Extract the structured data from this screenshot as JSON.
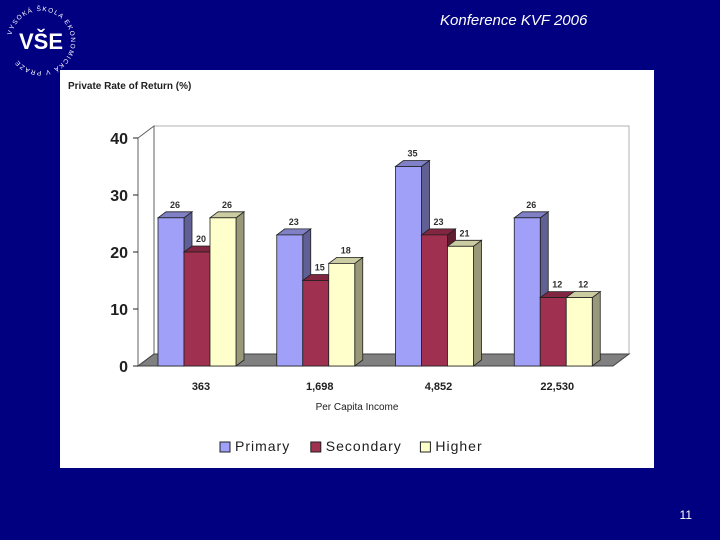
{
  "header": {
    "conference_title": "Konference KVF 2006",
    "logo_text": "VŠE",
    "logo_ring_text": "VYSOKÁ ŠKOLA EKONOMICKÁ V PRAZE"
  },
  "footer": {
    "slide_number": "11"
  },
  "colors": {
    "background": "#000080",
    "panel": "#ffffff",
    "primary": "#a0a0f8",
    "secondary": "#a03050",
    "higher": "#ffffcc",
    "floor": "#808080"
  },
  "chart_data": {
    "type": "bar",
    "title": "Private Rate of Return (%)",
    "xlabel": "Per Capita Income",
    "ylabel": "",
    "categories": [
      "363",
      "1,698",
      "4,852",
      "22,530"
    ],
    "series": [
      {
        "name": "Primary",
        "values": [
          26,
          23,
          35,
          26
        ]
      },
      {
        "name": "Secondary",
        "values": [
          20,
          15,
          23,
          12
        ]
      },
      {
        "name": "Higher",
        "values": [
          26,
          18,
          21,
          12
        ]
      }
    ],
    "ylim": [
      0,
      40
    ],
    "yticks": [
      "0",
      "10",
      "20",
      "30",
      "40"
    ],
    "legend_position": "bottom",
    "grid": false,
    "three_d": true
  }
}
